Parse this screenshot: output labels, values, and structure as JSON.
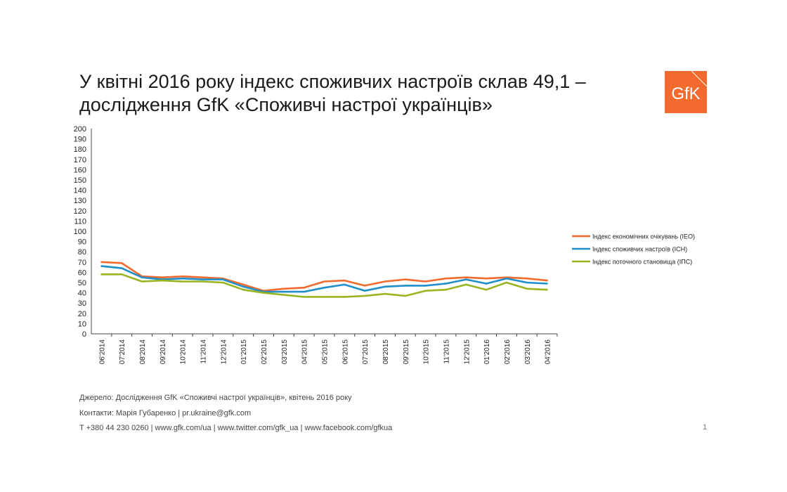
{
  "slide": {
    "title_line1": "У квітні 2016 року індекс споживчих настроїв склав 49,1 –",
    "title_line2": "дослідження GfK «Споживчі настрої українців»",
    "logo_text": "GfK",
    "source": "Джерело: Дослідження GfK «Споживчі настрої українців», квітень 2016 року",
    "contacts": "Контакти: Марія Губаренко | pr.ukraine@gfk.com",
    "links": "T +380 44 230 0260 | www.gfk.com/ua | www.twitter.com/gfk_ua | www.facebook.com/gfkua",
    "page_number": "1",
    "brand_color": "#f26a2e"
  },
  "chart_data": {
    "type": "line",
    "categories": [
      "06'2014",
      "07'2014",
      "08'2014",
      "09'2014",
      "10'2014",
      "11'2014",
      "12'2014",
      "01'2015",
      "02'2015",
      "03'2015",
      "04'2015",
      "05'2015",
      "06'2015",
      "07'2015",
      "08'2015",
      "09'2015",
      "10'2015",
      "11'2015",
      "12'2015",
      "01'2016",
      "02'2016",
      "03'2016",
      "04'2016"
    ],
    "yticks": [
      "0",
      "10",
      "20",
      "30",
      "40",
      "50",
      "60",
      "70",
      "80",
      "90",
      "100",
      "110",
      "120",
      "130",
      "140",
      "150",
      "160",
      "170",
      "180",
      "190",
      "200"
    ],
    "ylim": [
      0,
      200
    ],
    "legend_position": "right",
    "series": [
      {
        "name": "Індекс економічних очікувань (ІЕО)",
        "color": "#f26a2e",
        "values": [
          70,
          69,
          56,
          55,
          56,
          55,
          54,
          48,
          42,
          44,
          45,
          51,
          52,
          47,
          51,
          53,
          51,
          54,
          55,
          54,
          55,
          54,
          52
        ]
      },
      {
        "name": "Індекс споживчих настроїв (ІСН)",
        "color": "#1f8ec9",
        "values": [
          66,
          64,
          55,
          53,
          54,
          53,
          53,
          46,
          41,
          41,
          41,
          45,
          48,
          42,
          46,
          47,
          47,
          49,
          53,
          49,
          54,
          50,
          49
        ]
      },
      {
        "name": "Індекс поточного становища (ІПС)",
        "color": "#97b520",
        "values": [
          58,
          58,
          51,
          52,
          51,
          51,
          50,
          43,
          40,
          38,
          36,
          36,
          36,
          37,
          39,
          37,
          42,
          43,
          48,
          43,
          50,
          44,
          43
        ]
      }
    ]
  }
}
